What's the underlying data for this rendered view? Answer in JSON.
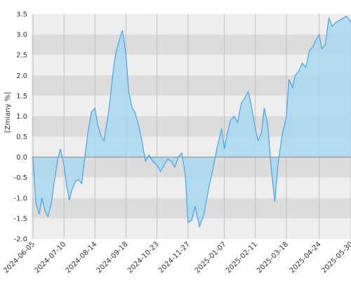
{
  "chart_data": {
    "type": "area",
    "ylabel": "[Zmiany %]",
    "ylim": [
      -2.0,
      3.5
    ],
    "yticks": [
      "3.5",
      "3.0",
      "2.5",
      "2.0",
      "1.5",
      "1.0",
      "0.5",
      "0.0",
      "-0.5",
      "-1.0",
      "-1.5",
      "-2.0"
    ],
    "xticks": [
      "2024-06-05",
      "2024-07-10",
      "2024-08-14",
      "2024-09-18",
      "2024-10-23",
      "2024-11-27",
      "2025-01-07",
      "2025-02-11",
      "2025-03-18",
      "2025-04-24",
      "2025-05-30"
    ],
    "grid": true,
    "colors": {
      "line": "#4aa3e6",
      "fill": "#a8d8f0",
      "band_dark": "#dcdcdc",
      "band_light": "#eeeeee",
      "vline": "#c0c0c0"
    },
    "series": [
      {
        "x": [
          "2024-06-05",
          "2024-06-08",
          "2024-06-12",
          "2024-06-15",
          "2024-06-19",
          "2024-06-22",
          "2024-06-26",
          "2024-06-29",
          "2024-07-03",
          "2024-07-06",
          "2024-07-10",
          "2024-07-13",
          "2024-07-16",
          "2024-07-19",
          "2024-07-23",
          "2024-07-26",
          "2024-07-30",
          "2024-08-02",
          "2024-08-06",
          "2024-08-10",
          "2024-08-14",
          "2024-08-17",
          "2024-08-21",
          "2024-08-24",
          "2024-08-28",
          "2024-08-31",
          "2024-09-04",
          "2024-09-07",
          "2024-09-11",
          "2024-09-14",
          "2024-09-18",
          "2024-09-21",
          "2024-09-25",
          "2024-09-28",
          "2024-10-02",
          "2024-10-06",
          "2024-10-10",
          "2024-10-14",
          "2024-10-18",
          "2024-10-23",
          "2024-10-27",
          "2024-10-31",
          "2024-11-04",
          "2024-11-08",
          "2024-11-12",
          "2024-11-16",
          "2024-11-20",
          "2024-11-24",
          "2024-11-27",
          "2024-12-01",
          "2024-12-05",
          "2024-12-10",
          "2024-12-15",
          "2024-12-20",
          "2024-12-25",
          "2024-12-30",
          "2025-01-04",
          "2025-01-07",
          "2025-01-10",
          "2025-01-14",
          "2025-01-18",
          "2025-01-22",
          "2025-01-26",
          "2025-01-30",
          "2025-02-03",
          "2025-02-07",
          "2025-02-11",
          "2025-02-14",
          "2025-02-18",
          "2025-02-21",
          "2025-02-25",
          "2025-03-01",
          "2025-03-05",
          "2025-03-09",
          "2025-03-13",
          "2025-03-18",
          "2025-03-21",
          "2025-03-25",
          "2025-03-28",
          "2025-04-01",
          "2025-04-05",
          "2025-04-09",
          "2025-04-13",
          "2025-04-17",
          "2025-04-20",
          "2025-04-24",
          "2025-04-27",
          "2025-05-01",
          "2025-05-05",
          "2025-05-09",
          "2025-05-13",
          "2025-05-17",
          "2025-05-21",
          "2025-05-25",
          "2025-05-30",
          "2025-06-02",
          "2025-06-05"
        ],
        "y": [
          0.0,
          -1.1,
          -1.4,
          -1.0,
          -1.35,
          -1.45,
          -1.1,
          -0.6,
          -0.05,
          0.2,
          -0.2,
          -0.7,
          -1.05,
          -0.8,
          -0.6,
          -0.55,
          -0.65,
          -0.1,
          0.6,
          1.1,
          1.2,
          0.8,
          0.5,
          0.4,
          0.9,
          1.4,
          2.2,
          2.6,
          2.9,
          3.1,
          2.5,
          1.6,
          1.2,
          1.1,
          0.8,
          0.4,
          -0.1,
          0.05,
          -0.1,
          -0.2,
          -0.35,
          -0.2,
          -0.05,
          -0.1,
          -0.25,
          0.0,
          0.1,
          -0.45,
          -1.6,
          -1.55,
          -1.2,
          -1.7,
          -1.4,
          -0.8,
          -0.3,
          0.25,
          0.7,
          0.2,
          0.55,
          0.9,
          1.0,
          0.85,
          1.3,
          1.45,
          1.6,
          1.2,
          0.7,
          0.4,
          0.6,
          1.2,
          0.8,
          -0.3,
          -1.1,
          -0.1,
          0.5,
          1.0,
          1.9,
          1.7,
          2.0,
          2.1,
          2.3,
          2.2,
          2.6,
          2.7,
          2.85,
          3.0,
          2.65,
          2.75,
          3.4,
          3.2,
          3.3,
          3.35,
          3.4,
          3.45,
          3.3,
          3.4,
          3.35
        ]
      }
    ]
  }
}
